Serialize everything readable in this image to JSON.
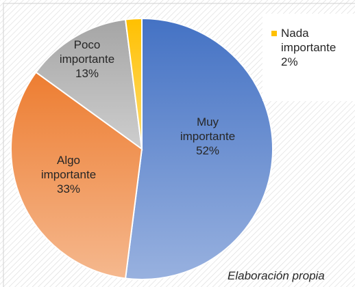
{
  "chart_data": {
    "type": "pie",
    "categories": [
      "Muy importante",
      "Algo importante",
      "Poco importante",
      "Nada importante"
    ],
    "values": [
      52,
      33,
      13,
      2
    ],
    "value_labels": [
      "52%",
      "33%",
      "13%",
      "2%"
    ],
    "colors": [
      "#4472c4",
      "#ed7d31",
      "#a5a5a5",
      "#ffc000"
    ],
    "note": "Elaboración propia"
  }
}
